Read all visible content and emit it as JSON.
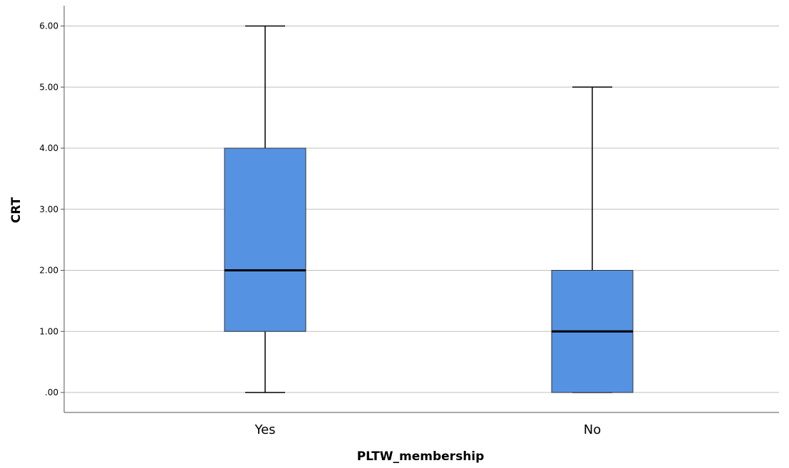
{
  "chart_data": {
    "type": "box",
    "xlabel": "PLTW_membership",
    "ylabel": "CRT",
    "ylim": [
      0,
      6.3
    ],
    "yticks": [
      0,
      1,
      2,
      3,
      4,
      5,
      6
    ],
    "ytick_labels": [
      ".00",
      "1.00",
      "2.00",
      "3.00",
      "4.00",
      "5.00",
      "6.00"
    ],
    "grid": true,
    "categories": [
      "Yes",
      "No"
    ],
    "boxes": [
      {
        "category": "Yes",
        "whisker_low": 0,
        "q1": 1,
        "median": 2,
        "q3": 4,
        "whisker_high": 6
      },
      {
        "category": "No",
        "whisker_low": 0,
        "q1": 0,
        "median": 1,
        "q3": 2,
        "whisker_high": 5
      }
    ],
    "box_color": "#5593e2",
    "grid_color": "#bfbfbf"
  }
}
